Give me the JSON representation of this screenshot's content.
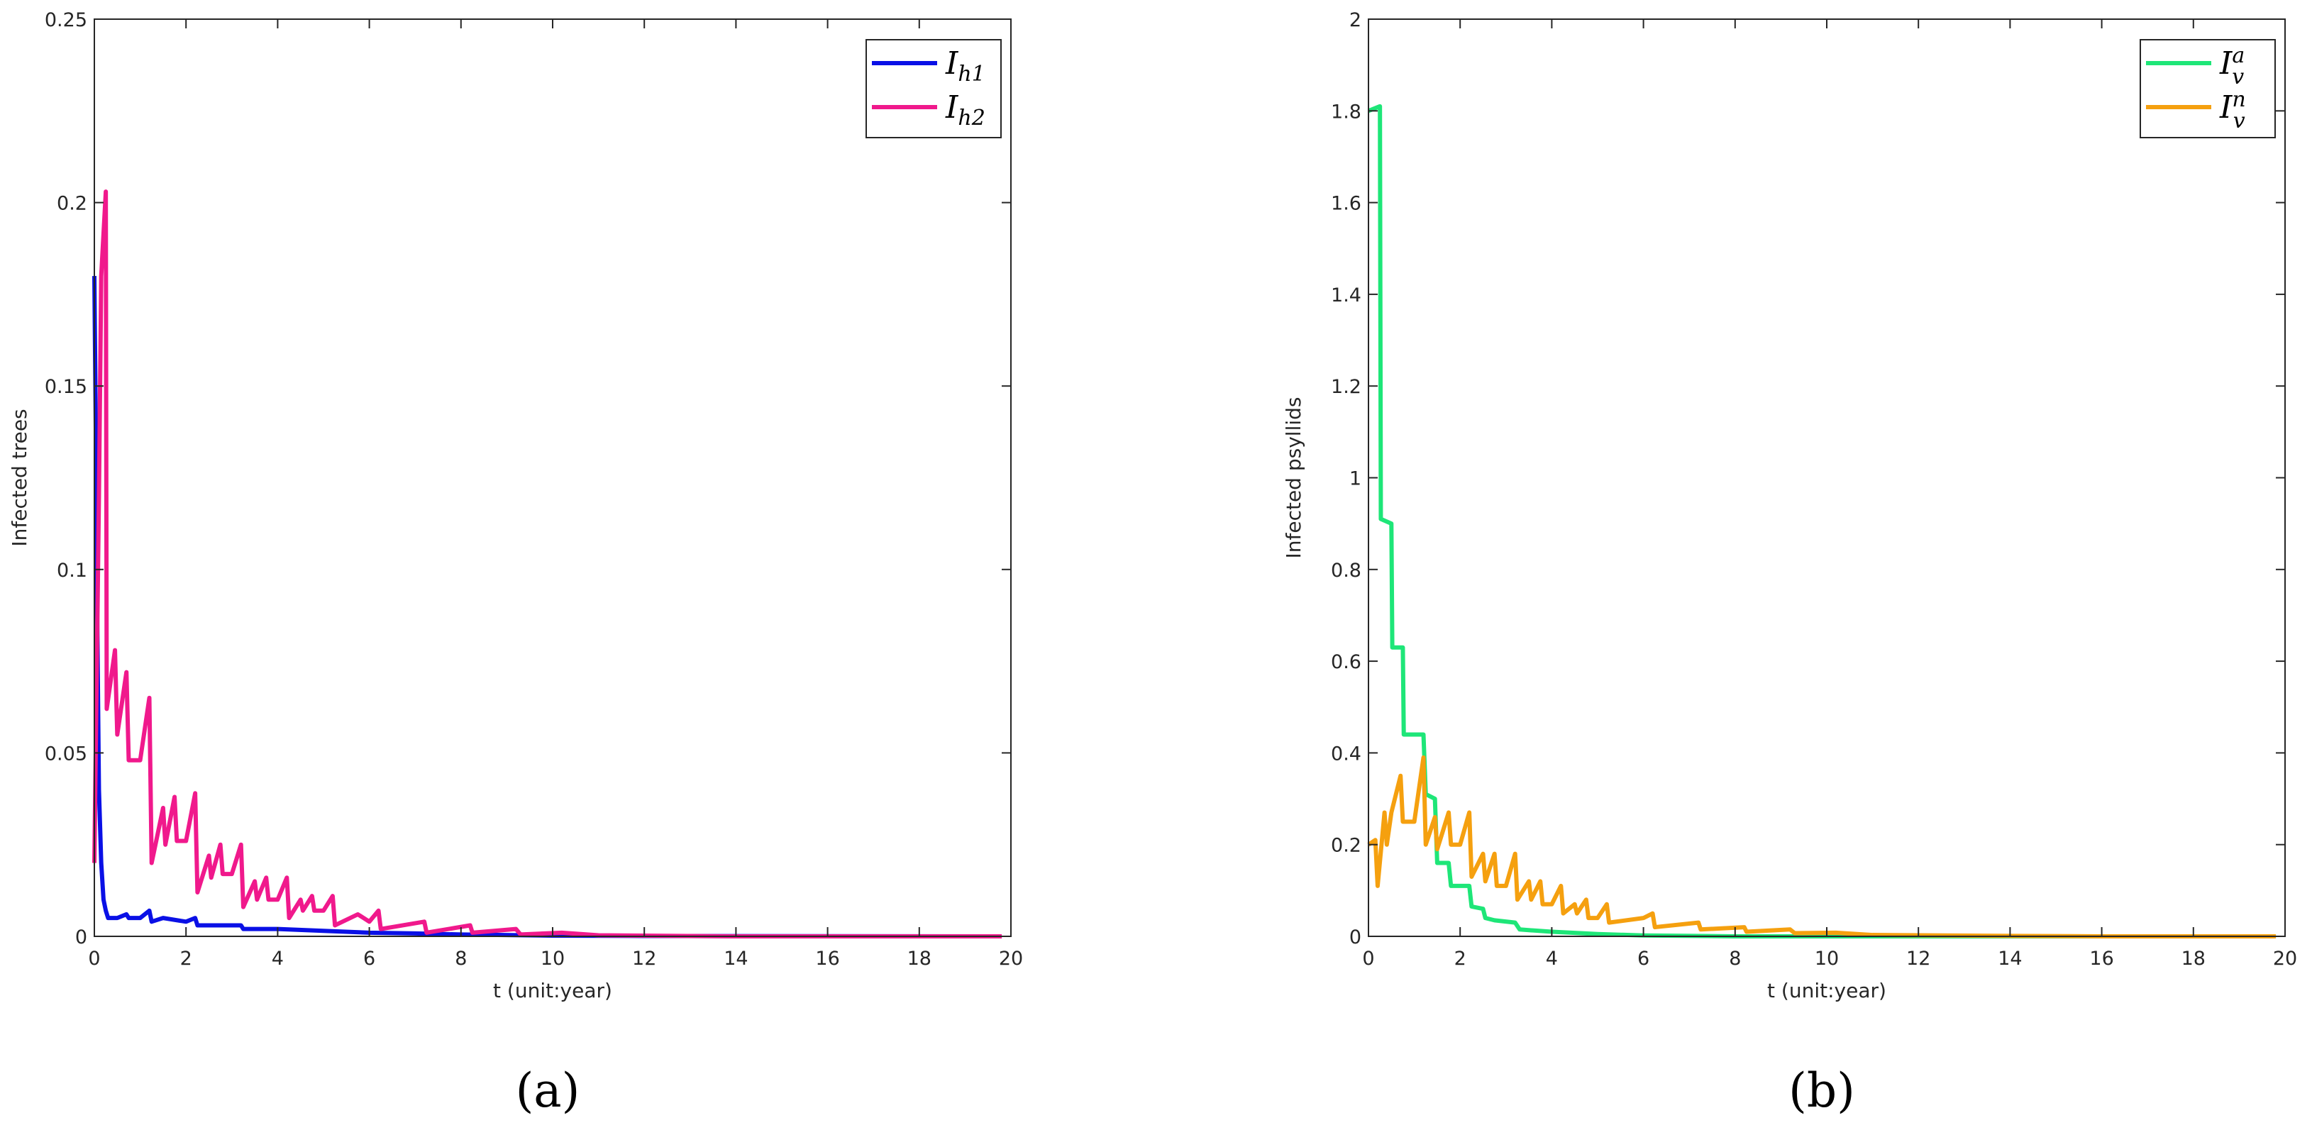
{
  "chart_data": [
    {
      "type": "line",
      "panel_label": "(a)",
      "xlabel": "t (unit:year)",
      "ylabel": "Infected trees",
      "xlim": [
        0,
        20
      ],
      "xticks": [
        0,
        2,
        4,
        6,
        8,
        10,
        12,
        14,
        16,
        18,
        20
      ],
      "ylim": [
        0,
        0.25
      ],
      "yticks": [
        0,
        0.05,
        0.1,
        0.15,
        0.2,
        0.25
      ],
      "legend": "upper right",
      "series": [
        {
          "name": "I",
          "subscript": "h1",
          "color": "#0a10e6",
          "x": [
            0,
            0.03,
            0.06,
            0.1,
            0.15,
            0.2,
            0.25,
            0.3,
            0.5,
            0.7,
            0.75,
            1.0,
            1.2,
            1.25,
            1.5,
            2.0,
            2.2,
            2.25,
            3.0,
            3.2,
            3.25,
            4.0,
            5.0,
            6.0,
            7.0,
            8.0,
            10.0,
            12.0,
            19.8
          ],
          "values": [
            0.18,
            0.14,
            0.09,
            0.04,
            0.02,
            0.01,
            0.007,
            0.005,
            0.005,
            0.006,
            0.005,
            0.005,
            0.007,
            0.004,
            0.005,
            0.004,
            0.005,
            0.003,
            0.003,
            0.003,
            0.002,
            0.002,
            0.0015,
            0.001,
            0.0008,
            0.0005,
            0.0002,
            0.0001,
            0
          ]
        },
        {
          "name": "I",
          "subscript": "h2",
          "color": "#f0198c",
          "x": [
            0,
            0.1,
            0.15,
            0.25,
            0.27,
            0.45,
            0.5,
            0.7,
            0.75,
            1.0,
            1.2,
            1.25,
            1.5,
            1.55,
            1.75,
            1.8,
            2.0,
            2.2,
            2.25,
            2.5,
            2.55,
            2.75,
            2.8,
            3.0,
            3.2,
            3.25,
            3.5,
            3.55,
            3.75,
            3.8,
            4.0,
            4.2,
            4.25,
            4.5,
            4.55,
            4.75,
            4.8,
            5.0,
            5.2,
            5.25,
            5.75,
            6.0,
            6.2,
            6.25,
            7.2,
            7.25,
            8.2,
            8.25,
            9.2,
            9.3,
            10.2,
            11.0,
            14.0,
            19.8
          ],
          "values": [
            0.02,
            0.12,
            0.18,
            0.203,
            0.062,
            0.078,
            0.055,
            0.072,
            0.048,
            0.048,
            0.065,
            0.02,
            0.035,
            0.025,
            0.038,
            0.026,
            0.026,
            0.039,
            0.012,
            0.022,
            0.016,
            0.025,
            0.017,
            0.017,
            0.025,
            0.008,
            0.015,
            0.01,
            0.016,
            0.01,
            0.01,
            0.016,
            0.005,
            0.01,
            0.007,
            0.011,
            0.007,
            0.007,
            0.011,
            0.003,
            0.006,
            0.004,
            0.007,
            0.002,
            0.004,
            0.001,
            0.003,
            0.001,
            0.002,
            0.0005,
            0.001,
            0.0003,
            0,
            0
          ]
        }
      ]
    },
    {
      "type": "line",
      "panel_label": "(b)",
      "xlabel": "t (unit:year)",
      "ylabel": "Infected psyllids",
      "xlim": [
        0,
        20
      ],
      "xticks": [
        0,
        2,
        4,
        6,
        8,
        10,
        12,
        14,
        16,
        18,
        20
      ],
      "ylim": [
        0,
        2
      ],
      "yticks": [
        0,
        0.2,
        0.4,
        0.6,
        0.8,
        1,
        1.2,
        1.4,
        1.6,
        1.8,
        2
      ],
      "legend": "upper right",
      "series": [
        {
          "name": "I",
          "subscript": "v",
          "superscript": "a",
          "color": "#1ee678",
          "x": [
            0,
            0.25,
            0.27,
            0.5,
            0.52,
            0.75,
            0.77,
            1.2,
            1.25,
            1.45,
            1.5,
            1.75,
            1.8,
            2.2,
            2.25,
            2.5,
            2.55,
            2.75,
            3.2,
            3.3,
            4.0,
            5.0,
            6.0,
            8.0,
            19.8
          ],
          "values": [
            1.8,
            1.81,
            0.91,
            0.9,
            0.63,
            0.63,
            0.44,
            0.44,
            0.31,
            0.3,
            0.16,
            0.16,
            0.11,
            0.11,
            0.065,
            0.06,
            0.04,
            0.035,
            0.03,
            0.015,
            0.01,
            0.005,
            0.002,
            0,
            0
          ]
        },
        {
          "name": "I",
          "subscript": "v",
          "superscript": "n",
          "color": "#f5a00f",
          "x": [
            0,
            0.15,
            0.2,
            0.35,
            0.4,
            0.5,
            0.7,
            0.75,
            1.0,
            1.2,
            1.25,
            1.45,
            1.5,
            1.75,
            1.8,
            2.0,
            2.2,
            2.25,
            2.5,
            2.55,
            2.75,
            2.8,
            3.0,
            3.2,
            3.25,
            3.5,
            3.55,
            3.75,
            3.8,
            4.0,
            4.2,
            4.25,
            4.5,
            4.55,
            4.75,
            4.8,
            5.0,
            5.2,
            5.25,
            6.0,
            6.2,
            6.25,
            7.2,
            7.25,
            8.2,
            8.25,
            9.2,
            9.3,
            10.2,
            11.0,
            14.0,
            16.0,
            19.8
          ],
          "values": [
            0.2,
            0.21,
            0.11,
            0.27,
            0.2,
            0.27,
            0.35,
            0.25,
            0.25,
            0.39,
            0.2,
            0.26,
            0.19,
            0.27,
            0.2,
            0.2,
            0.27,
            0.13,
            0.18,
            0.12,
            0.18,
            0.11,
            0.11,
            0.18,
            0.08,
            0.12,
            0.08,
            0.12,
            0.07,
            0.07,
            0.11,
            0.05,
            0.07,
            0.05,
            0.08,
            0.04,
            0.04,
            0.07,
            0.03,
            0.04,
            0.05,
            0.02,
            0.03,
            0.015,
            0.02,
            0.01,
            0.015,
            0.007,
            0.008,
            0.003,
            0.001,
            0,
            0
          ]
        }
      ]
    }
  ]
}
